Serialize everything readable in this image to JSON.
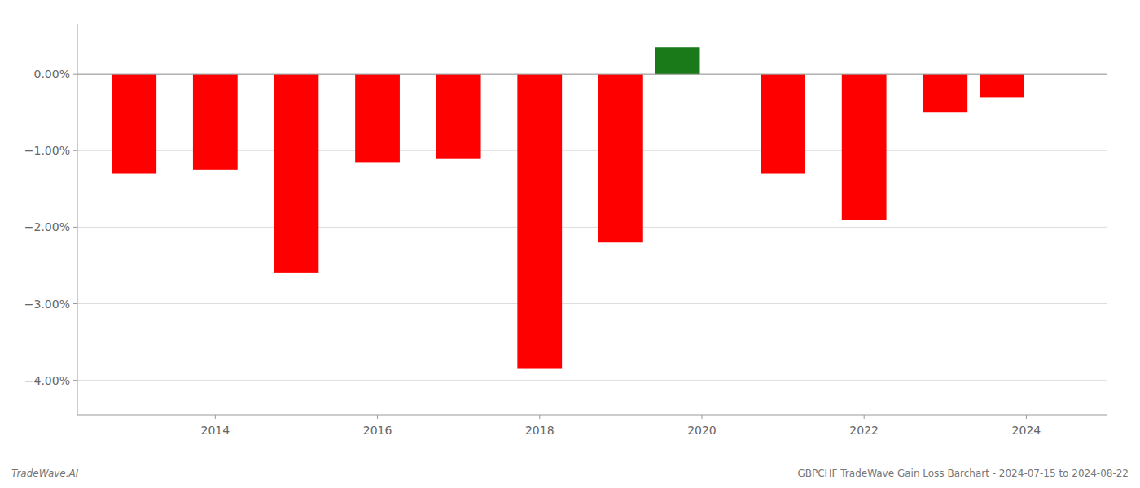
{
  "chart_data": {
    "type": "bar",
    "x": [
      2013,
      2014,
      2015,
      2016,
      2017,
      2018,
      2019,
      2019.7,
      2021,
      2022,
      2023,
      2023.7
    ],
    "values": [
      -1.3,
      -1.25,
      -2.6,
      -1.15,
      -1.1,
      -3.85,
      -2.2,
      0.35,
      -1.3,
      -1.9,
      -0.5,
      -0.3
    ],
    "colors": [
      "#ff0000",
      "#ff0000",
      "#ff0000",
      "#ff0000",
      "#ff0000",
      "#ff0000",
      "#ff0000",
      "#1a7a1a",
      "#ff0000",
      "#ff0000",
      "#ff0000",
      "#ff0000"
    ],
    "xlim": [
      2012.3,
      2025.0
    ],
    "xticks": [
      2014,
      2016,
      2018,
      2020,
      2022,
      2024
    ],
    "ylim": [
      -4.45,
      0.65
    ],
    "yticks": [
      {
        "value": 0.0,
        "label": "0.00%"
      },
      {
        "value": -1.0,
        "label": "−1.00%"
      },
      {
        "value": -2.0,
        "label": "−2.00%"
      },
      {
        "value": -3.0,
        "label": "−3.00%"
      },
      {
        "value": -4.0,
        "label": "−4.00%"
      }
    ],
    "grid": true,
    "annotations": [
      "TradeWave.AI",
      "GBPCHF TradeWave Gain Loss Barchart - 2024-07-15 to 2024-08-22"
    ]
  }
}
